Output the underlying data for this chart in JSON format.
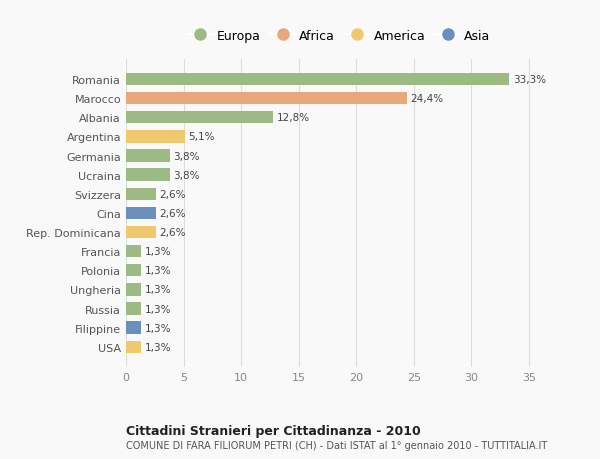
{
  "countries": [
    "Romania",
    "Marocco",
    "Albania",
    "Argentina",
    "Germania",
    "Ucraina",
    "Svizzera",
    "Cina",
    "Rep. Dominicana",
    "Francia",
    "Polonia",
    "Ungheria",
    "Russia",
    "Filippine",
    "USA"
  ],
  "values": [
    33.3,
    24.4,
    12.8,
    5.1,
    3.8,
    3.8,
    2.6,
    2.6,
    2.6,
    1.3,
    1.3,
    1.3,
    1.3,
    1.3,
    1.3
  ],
  "labels": [
    "33,3%",
    "24,4%",
    "12,8%",
    "5,1%",
    "3,8%",
    "3,8%",
    "2,6%",
    "2,6%",
    "2,6%",
    "1,3%",
    "1,3%",
    "1,3%",
    "1,3%",
    "1,3%",
    "1,3%"
  ],
  "continents": [
    "Europa",
    "Africa",
    "Europa",
    "America",
    "Europa",
    "Europa",
    "Europa",
    "Asia",
    "America",
    "Europa",
    "Europa",
    "Europa",
    "Europa",
    "Asia",
    "America"
  ],
  "continent_colors": {
    "Europa": "#9eba84",
    "Africa": "#e8a87c",
    "America": "#f0c96e",
    "Asia": "#6b8fbf"
  },
  "legend_order": [
    "Europa",
    "Africa",
    "America",
    "Asia"
  ],
  "title1": "Cittadini Stranieri per Cittadinanza - 2010",
  "title2": "COMUNE DI FARA FILIORUM PETRI (CH) - Dati ISTAT al 1° gennaio 2010 - TUTTITALIA.IT",
  "xlim": [
    0,
    37
  ],
  "xticks": [
    0,
    5,
    10,
    15,
    20,
    25,
    30,
    35
  ],
  "background_color": "#f9f9f9",
  "grid_color": "#dddddd",
  "bar_height": 0.65
}
